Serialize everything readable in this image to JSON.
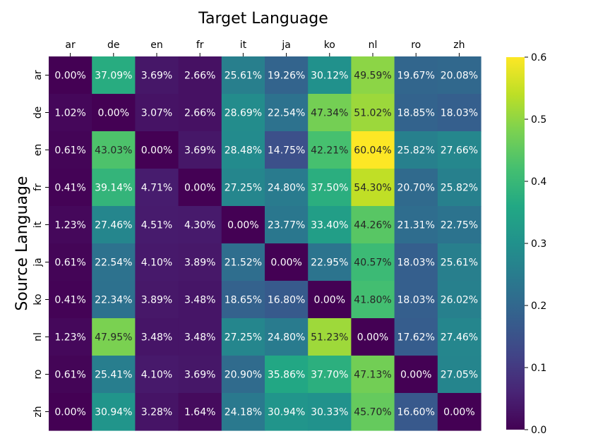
{
  "chart_data": {
    "type": "heatmap",
    "title": "Target Language",
    "xlabel": "Target Language",
    "ylabel": "Source Language",
    "x_categories": [
      "ar",
      "de",
      "en",
      "fr",
      "it",
      "ja",
      "ko",
      "nl",
      "ro",
      "zh"
    ],
    "y_categories": [
      "ar",
      "de",
      "en",
      "fr",
      "it",
      "ja",
      "ko",
      "nl",
      "ro",
      "zh"
    ],
    "values": [
      [
        0.0,
        0.3709,
        0.0369,
        0.0266,
        0.2561,
        0.1926,
        0.3012,
        0.4959,
        0.1967,
        0.2008
      ],
      [
        0.0102,
        0.0,
        0.0307,
        0.0266,
        0.2869,
        0.2254,
        0.4734,
        0.5102,
        0.1885,
        0.1803
      ],
      [
        0.0061,
        0.4303,
        0.0,
        0.0369,
        0.2848,
        0.1475,
        0.4221,
        0.6004,
        0.2582,
        0.2766
      ],
      [
        0.0041,
        0.3914,
        0.0471,
        0.0,
        0.2725,
        0.248,
        0.375,
        0.543,
        0.207,
        0.2582
      ],
      [
        0.0123,
        0.2746,
        0.0451,
        0.043,
        0.0,
        0.2377,
        0.334,
        0.4426,
        0.2131,
        0.2275
      ],
      [
        0.0061,
        0.2254,
        0.041,
        0.0389,
        0.2152,
        0.0,
        0.2295,
        0.4057,
        0.1803,
        0.2561
      ],
      [
        0.0041,
        0.2234,
        0.0389,
        0.0348,
        0.1865,
        0.168,
        0.0,
        0.418,
        0.1803,
        0.2602
      ],
      [
        0.0123,
        0.4795,
        0.0348,
        0.0348,
        0.2725,
        0.248,
        0.5123,
        0.0,
        0.1762,
        0.2746
      ],
      [
        0.0061,
        0.2541,
        0.041,
        0.0369,
        0.209,
        0.3586,
        0.377,
        0.4713,
        0.0,
        0.2705
      ],
      [
        0.0,
        0.3094,
        0.0328,
        0.0164,
        0.2418,
        0.3094,
        0.3033,
        0.457,
        0.166,
        0.0
      ]
    ],
    "cell_labels": [
      [
        "0.00%",
        "37.09%",
        "3.69%",
        "2.66%",
        "25.61%",
        "19.26%",
        "30.12%",
        "49.59%",
        "19.67%",
        "20.08%"
      ],
      [
        "1.02%",
        "0.00%",
        "3.07%",
        "2.66%",
        "28.69%",
        "22.54%",
        "47.34%",
        "51.02%",
        "18.85%",
        "18.03%"
      ],
      [
        "0.61%",
        "43.03%",
        "0.00%",
        "3.69%",
        "28.48%",
        "14.75%",
        "42.21%",
        "60.04%",
        "25.82%",
        "27.66%"
      ],
      [
        "0.41%",
        "39.14%",
        "4.71%",
        "0.00%",
        "27.25%",
        "24.80%",
        "37.50%",
        "54.30%",
        "20.70%",
        "25.82%"
      ],
      [
        "1.23%",
        "27.46%",
        "4.51%",
        "4.30%",
        "0.00%",
        "23.77%",
        "33.40%",
        "44.26%",
        "21.31%",
        "22.75%"
      ],
      [
        "0.61%",
        "22.54%",
        "4.10%",
        "3.89%",
        "21.52%",
        "0.00%",
        "22.95%",
        "40.57%",
        "18.03%",
        "25.61%"
      ],
      [
        "0.41%",
        "22.34%",
        "3.89%",
        "3.48%",
        "18.65%",
        "16.80%",
        "0.00%",
        "41.80%",
        "18.03%",
        "26.02%"
      ],
      [
        "1.23%",
        "47.95%",
        "3.48%",
        "3.48%",
        "27.25%",
        "24.80%",
        "51.23%",
        "0.00%",
        "17.62%",
        "27.46%"
      ],
      [
        "0.61%",
        "25.41%",
        "4.10%",
        "3.69%",
        "20.90%",
        "35.86%",
        "37.70%",
        "47.13%",
        "0.00%",
        "27.05%"
      ],
      [
        "0.00%",
        "30.94%",
        "3.28%",
        "1.64%",
        "24.18%",
        "30.94%",
        "30.33%",
        "45.70%",
        "16.60%",
        "0.00%"
      ]
    ],
    "colormap": "viridis",
    "colorbar": {
      "range": [
        0.0,
        0.6
      ],
      "ticks": [
        "0.0",
        "0.1",
        "0.2",
        "0.3",
        "0.4",
        "0.5",
        "0.6"
      ]
    },
    "x_axis_position": "top",
    "grid": false,
    "legend": "colorbar-right"
  }
}
